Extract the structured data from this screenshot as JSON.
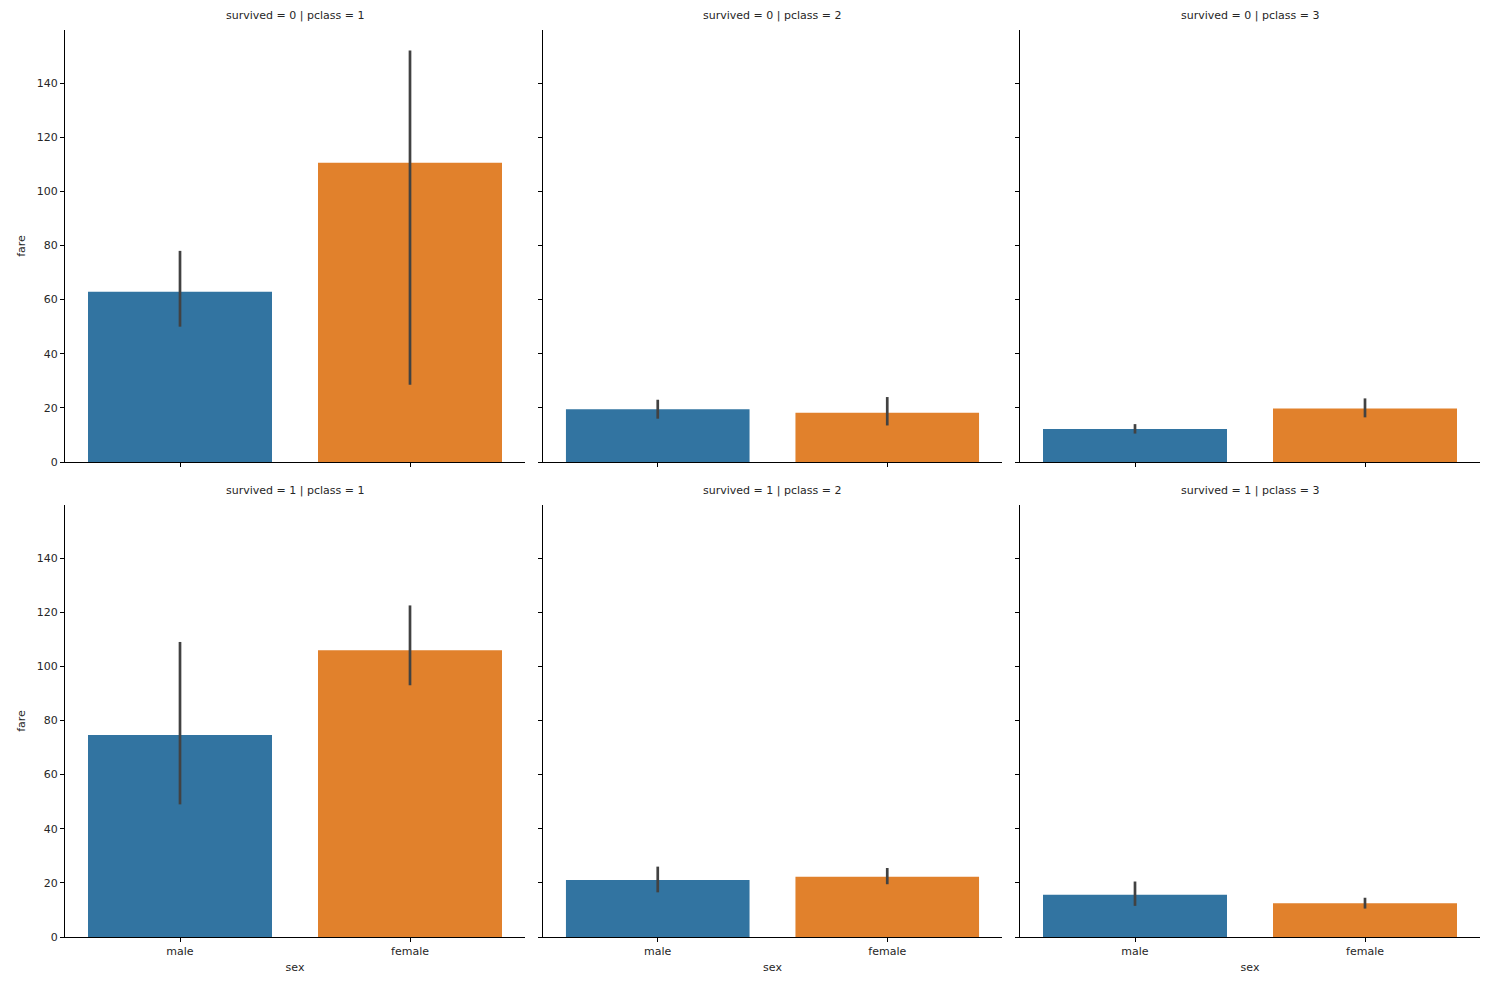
{
  "chart_data": [
    {
      "type": "bar",
      "title": "survived = 0 | pclass = 1",
      "categories": [
        "male",
        "female"
      ],
      "values": [
        62.9,
        110.6
      ],
      "ci_low": [
        50.0,
        28.5
      ],
      "ci_high": [
        78.0,
        152.0
      ],
      "colors": [
        "#3274a1",
        "#e1812c"
      ],
      "ylim": [
        0,
        159.6
      ],
      "yticks": [
        0,
        20,
        40,
        60,
        80,
        100,
        120,
        140
      ],
      "y_label": "fare",
      "tick_labels": "y"
    },
    {
      "type": "bar",
      "title": "survived = 0 | pclass = 2",
      "categories": [
        "male",
        "female"
      ],
      "values": [
        19.5,
        18.2
      ],
      "ci_low": [
        16.0,
        13.5
      ],
      "ci_high": [
        23.0,
        24.0
      ],
      "colors": [
        "#3274a1",
        "#e1812c"
      ],
      "ylim": [
        0,
        159.6
      ],
      "yticks": [
        0,
        20,
        40,
        60,
        80,
        100,
        120,
        140
      ],
      "tick_labels": false
    },
    {
      "type": "bar",
      "title": "survived = 0 | pclass = 3",
      "categories": [
        "male",
        "female"
      ],
      "values": [
        12.2,
        19.8
      ],
      "ci_low": [
        10.5,
        16.5
      ],
      "ci_high": [
        14.0,
        23.5
      ],
      "colors": [
        "#3274a1",
        "#e1812c"
      ],
      "ylim": [
        0,
        159.6
      ],
      "yticks": [
        0,
        20,
        40,
        60,
        80,
        100,
        120,
        140
      ],
      "tick_labels": false
    },
    {
      "type": "bar",
      "title": "survived = 1 | pclass = 1",
      "categories": [
        "male",
        "female"
      ],
      "values": [
        74.6,
        105.9
      ],
      "ci_low": [
        49.0,
        93.0
      ],
      "ci_high": [
        109.0,
        122.5
      ],
      "colors": [
        "#3274a1",
        "#e1812c"
      ],
      "ylim": [
        0,
        159.6
      ],
      "yticks": [
        0,
        20,
        40,
        60,
        80,
        100,
        120,
        140
      ],
      "x_label": "sex",
      "y_label": "fare"
    },
    {
      "type": "bar",
      "title": "survived = 1 | pclass = 2",
      "categories": [
        "male",
        "female"
      ],
      "values": [
        21.1,
        22.3
      ],
      "ci_low": [
        16.5,
        19.5
      ],
      "ci_high": [
        26.0,
        25.5
      ],
      "colors": [
        "#3274a1",
        "#e1812c"
      ],
      "ylim": [
        0,
        159.6
      ],
      "yticks": [
        0,
        20,
        40,
        60,
        80,
        100,
        120,
        140
      ],
      "x_label": "sex",
      "tick_labels": "x"
    },
    {
      "type": "bar",
      "title": "survived = 1 | pclass = 3",
      "categories": [
        "male",
        "female"
      ],
      "values": [
        15.6,
        12.5
      ],
      "ci_low": [
        11.5,
        10.5
      ],
      "ci_high": [
        20.5,
        14.5
      ],
      "colors": [
        "#3274a1",
        "#e1812c"
      ],
      "ylim": [
        0,
        159.6
      ],
      "yticks": [
        0,
        20,
        40,
        60,
        80,
        100,
        120,
        140
      ],
      "x_label": "sex",
      "tick_labels": "x"
    }
  ]
}
